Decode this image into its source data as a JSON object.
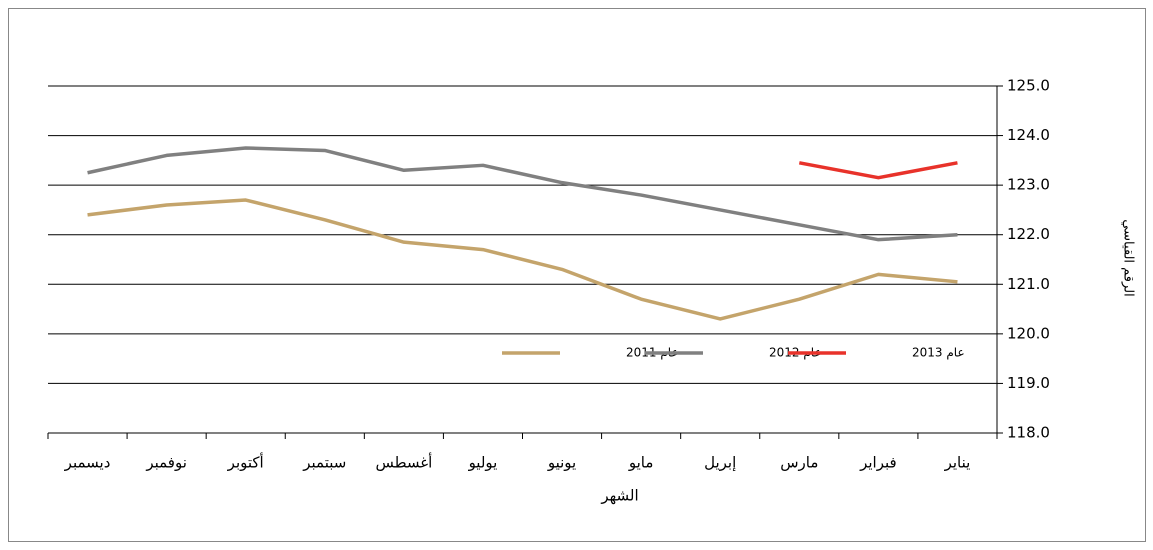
{
  "chart_data": {
    "type": "line",
    "x_label": "الشهر",
    "y_label": "الرقم القياسي",
    "categories": [
      "يناير",
      "فبراير",
      "مارس",
      "إبريل",
      "مايو",
      "يونيو",
      "يوليو",
      "أغسطس",
      "سبتمبر",
      "أكتوبر",
      "نوفمبر",
      "ديسمبر"
    ],
    "series": [
      {
        "name": "عام 2011",
        "color": "#c4a46b",
        "values": [
          121.05,
          121.2,
          120.7,
          120.3,
          120.7,
          121.3,
          121.7,
          121.85,
          122.3,
          122.7,
          122.6,
          122.4
        ]
      },
      {
        "name": "عام 2012",
        "color": "#808080",
        "values": [
          122.0,
          121.9,
          122.2,
          122.5,
          122.8,
          123.05,
          123.4,
          123.3,
          123.7,
          123.75,
          123.6,
          123.25
        ]
      },
      {
        "name": "عام 2013",
        "color": "#e8322a",
        "values": [
          123.45,
          123.15,
          123.45,
          null,
          null,
          null,
          null,
          null,
          null,
          null,
          null,
          null
        ]
      }
    ],
    "ylim": [
      118,
      125
    ],
    "yticks": [
      {
        "value": 118,
        "label": "118.0"
      },
      {
        "value": 119,
        "label": "119.0"
      },
      {
        "value": 120,
        "label": "120.0"
      },
      {
        "value": 121,
        "label": "121.0"
      },
      {
        "value": 122,
        "label": "122.0"
      },
      {
        "value": 123,
        "label": "123.0"
      },
      {
        "value": 124,
        "label": "124.0"
      },
      {
        "value": 125,
        "label": "125.0"
      }
    ],
    "grid": true,
    "x_reversed": true,
    "y_axis_side": "right",
    "legend": "bottom"
  }
}
